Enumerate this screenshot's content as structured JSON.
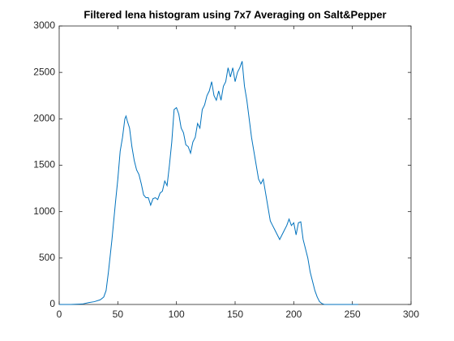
{
  "chart_data": {
    "type": "line",
    "title": "Filtered lena histogram using 7x7 Averaging on Salt&Pepper",
    "x": [
      0,
      10,
      20,
      25,
      30,
      35,
      38,
      40,
      42,
      45,
      48,
      50,
      52,
      54,
      56,
      57,
      58,
      60,
      62,
      64,
      66,
      68,
      70,
      72,
      74,
      76,
      78,
      80,
      82,
      84,
      86,
      88,
      90,
      92,
      94,
      96,
      98,
      100,
      102,
      104,
      106,
      108,
      110,
      112,
      114,
      116,
      118,
      120,
      122,
      124,
      126,
      128,
      130,
      132,
      134,
      136,
      138,
      140,
      142,
      144,
      146,
      148,
      150,
      152,
      154,
      156,
      158,
      160,
      162,
      164,
      166,
      168,
      170,
      172,
      174,
      176,
      178,
      180,
      182,
      184,
      186,
      188,
      190,
      192,
      194,
      196,
      198,
      200,
      202,
      204,
      206,
      208,
      210,
      212,
      214,
      216,
      218,
      220,
      222,
      224,
      226,
      240,
      255
    ],
    "series": [
      {
        "color": "#0072bd",
        "values": [
          0,
          0,
          5,
          20,
          30,
          50,
          80,
          150,
          350,
          700,
          1100,
          1350,
          1650,
          1800,
          2000,
          2030,
          1980,
          1900,
          1700,
          1550,
          1450,
          1400,
          1300,
          1180,
          1150,
          1150,
          1070,
          1140,
          1150,
          1130,
          1200,
          1220,
          1330,
          1280,
          1500,
          1750,
          2100,
          2120,
          2050,
          1900,
          1850,
          1720,
          1700,
          1630,
          1750,
          1800,
          1950,
          1900,
          2100,
          2150,
          2250,
          2300,
          2400,
          2250,
          2200,
          2300,
          2200,
          2350,
          2400,
          2550,
          2450,
          2550,
          2400,
          2500,
          2550,
          2620,
          2350,
          2200,
          2000,
          1800,
          1650,
          1500,
          1350,
          1300,
          1350,
          1200,
          1050,
          900,
          850,
          800,
          750,
          700,
          750,
          800,
          850,
          920,
          850,
          880,
          750,
          880,
          890,
          700,
          600,
          500,
          350,
          250,
          150,
          80,
          30,
          10,
          0,
          0,
          0
        ]
      }
    ],
    "xlim": [
      0,
      300
    ],
    "xticks": [
      0,
      50,
      100,
      150,
      200,
      250,
      300
    ],
    "ylim": [
      0,
      3000
    ],
    "yticks": [
      0,
      500,
      1000,
      1500,
      2000,
      2500,
      3000
    ]
  }
}
